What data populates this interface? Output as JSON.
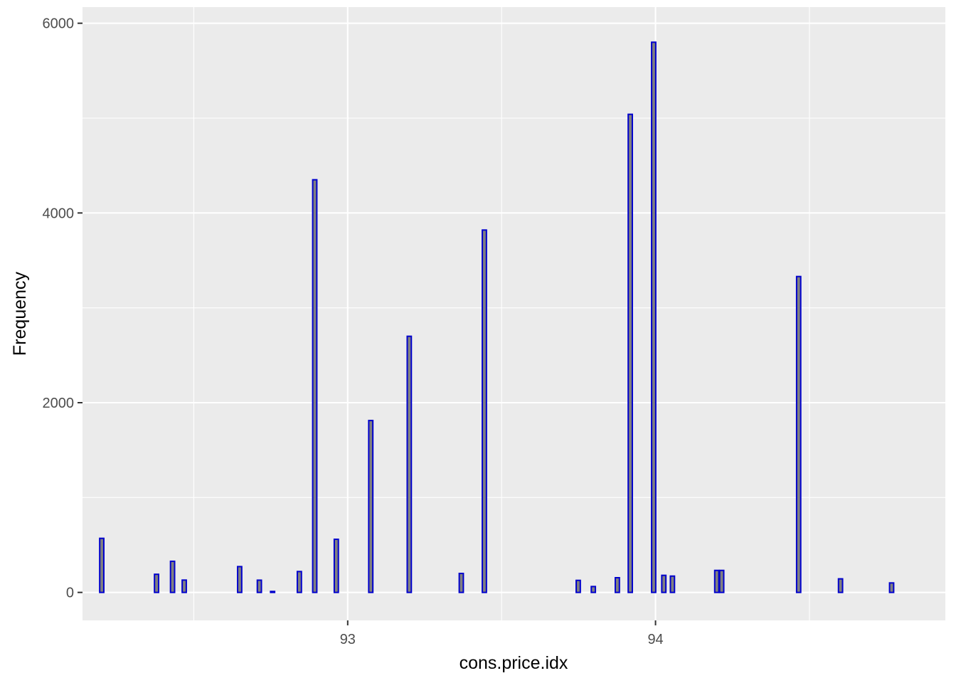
{
  "chart_data": {
    "type": "bar",
    "xlabel": "cons.price.idx",
    "ylabel": "Frequency",
    "xlim": [
      92.1385,
      94.9415
    ],
    "ylim": [
      -295,
      6170
    ],
    "xticks": [
      93,
      94
    ],
    "xtick_labels": [
      "93",
      "94"
    ],
    "yticks": [
      0,
      2000,
      4000,
      6000
    ],
    "ytick_labels": [
      "0",
      "2000",
      "4000",
      "6000"
    ],
    "grid": true,
    "bar_fill": "#808080",
    "bar_outline": "#0000cc",
    "panel_background": "#ebebeb",
    "grid_color": "#ffffff",
    "bars": [
      {
        "x": 92.201,
        "y": 570
      },
      {
        "x": 92.379,
        "y": 191
      },
      {
        "x": 92.431,
        "y": 328
      },
      {
        "x": 92.469,
        "y": 130
      },
      {
        "x": 92.649,
        "y": 272
      },
      {
        "x": 92.713,
        "y": 129
      },
      {
        "x": 92.756,
        "y": 10
      },
      {
        "x": 92.843,
        "y": 220
      },
      {
        "x": 92.893,
        "y": 4350
      },
      {
        "x": 92.963,
        "y": 560
      },
      {
        "x": 93.075,
        "y": 1812
      },
      {
        "x": 93.2,
        "y": 2700
      },
      {
        "x": 93.369,
        "y": 200
      },
      {
        "x": 93.444,
        "y": 3820
      },
      {
        "x": 93.749,
        "y": 127
      },
      {
        "x": 93.798,
        "y": 62
      },
      {
        "x": 93.876,
        "y": 155
      },
      {
        "x": 93.918,
        "y": 5040
      },
      {
        "x": 93.994,
        "y": 5800
      },
      {
        "x": 94.027,
        "y": 180
      },
      {
        "x": 94.055,
        "y": 172
      },
      {
        "x": 94.199,
        "y": 232
      },
      {
        "x": 94.215,
        "y": 232
      },
      {
        "x": 94.465,
        "y": 3330
      },
      {
        "x": 94.601,
        "y": 143
      },
      {
        "x": 94.767,
        "y": 100
      }
    ]
  }
}
